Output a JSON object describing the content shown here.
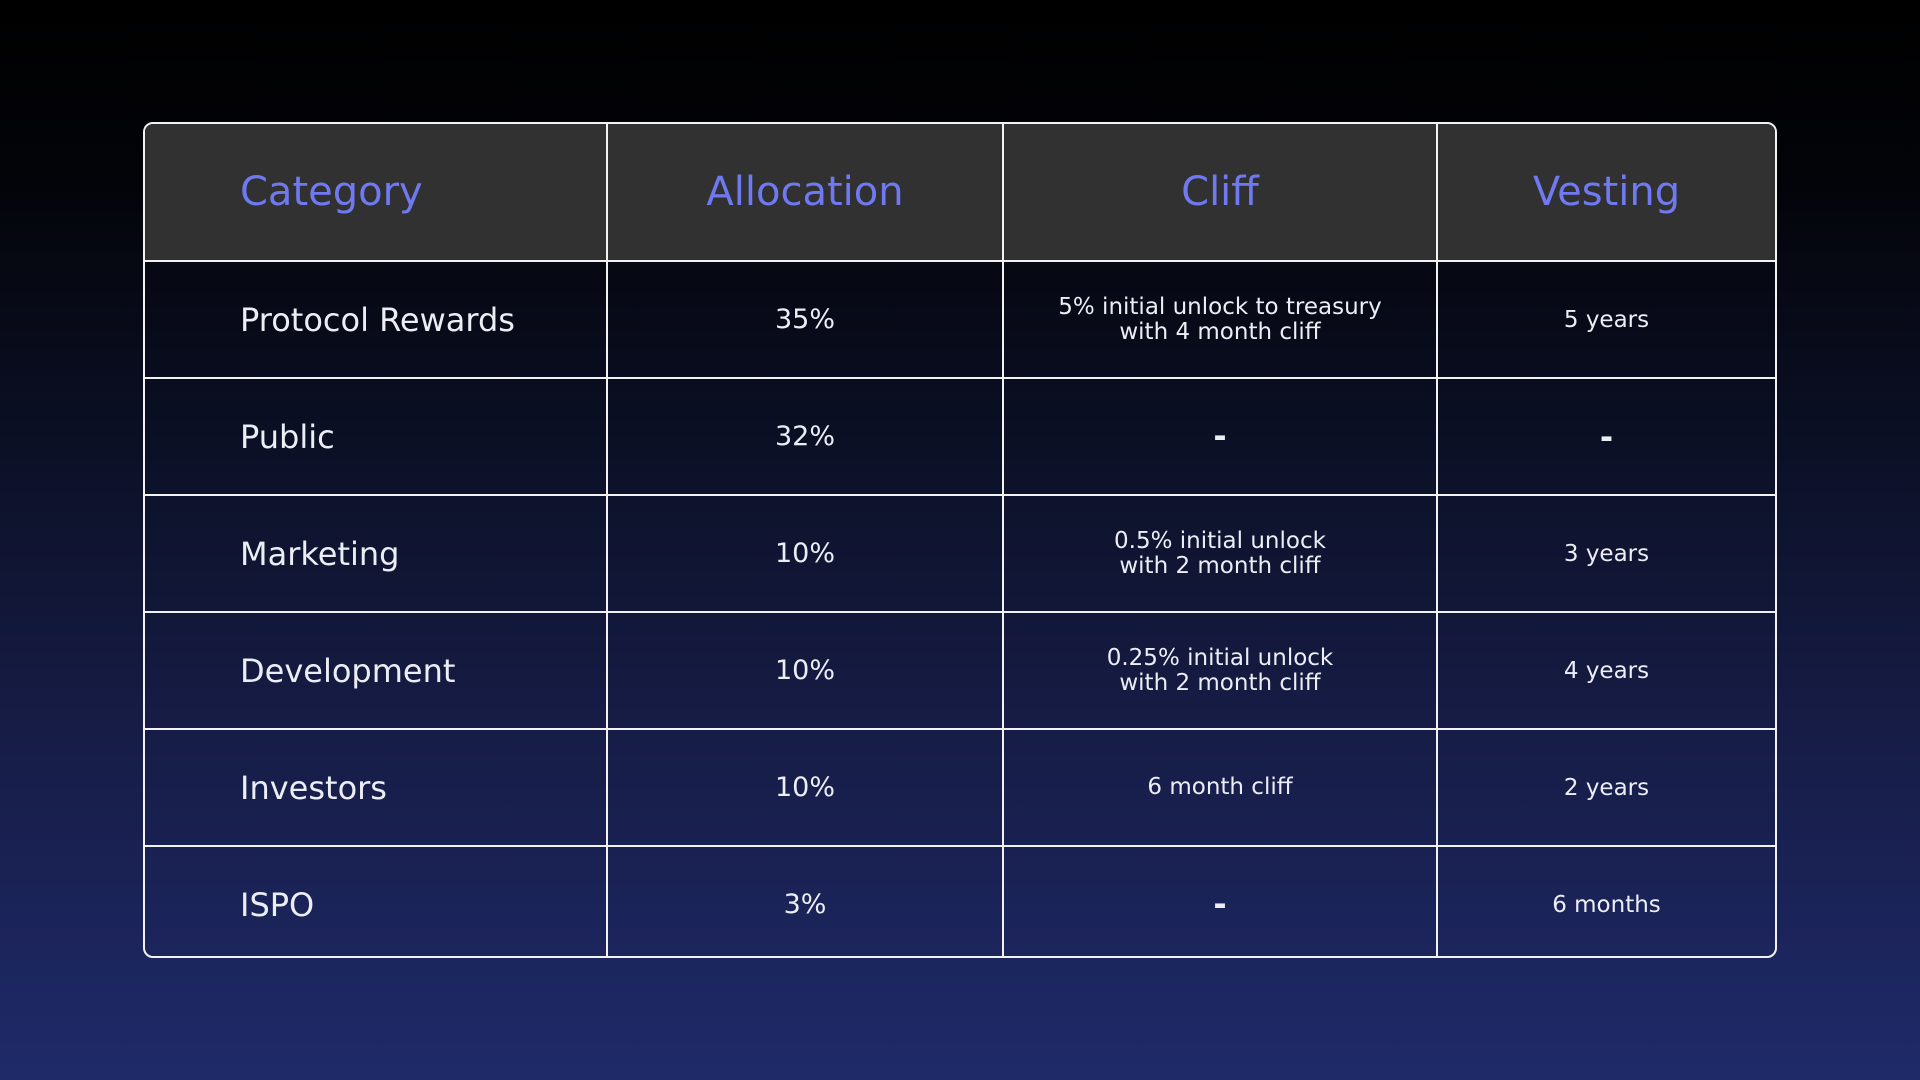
{
  "table": {
    "headers": [
      "Category",
      "Allocation",
      "Cliff",
      "Vesting"
    ],
    "rows": [
      {
        "category": "Protocol Rewards",
        "allocation": "35%",
        "cliff": "5% initial unlock to treasury\nwith 4 month cliff",
        "vesting": "5 years"
      },
      {
        "category": "Public",
        "allocation": "32%",
        "cliff": "-",
        "vesting": "-"
      },
      {
        "category": "Marketing",
        "allocation": "10%",
        "cliff": "0.5% initial unlock\nwith 2 month cliff",
        "vesting": "3 years"
      },
      {
        "category": "Development",
        "allocation": "10%",
        "cliff": "0.25% initial unlock\nwith 2 month cliff",
        "vesting": "4 years"
      },
      {
        "category": "Investors",
        "allocation": "10%",
        "cliff": "6 month cliff",
        "vesting": "2 years"
      },
      {
        "category": "ISPO",
        "allocation": "3%",
        "cliff": "-",
        "vesting": "6 months"
      }
    ]
  },
  "colors": {
    "header_text": "#6f79f1",
    "header_bg": "#313131",
    "grid": "#f2f2f2",
    "cell_text": "#eceef5"
  }
}
